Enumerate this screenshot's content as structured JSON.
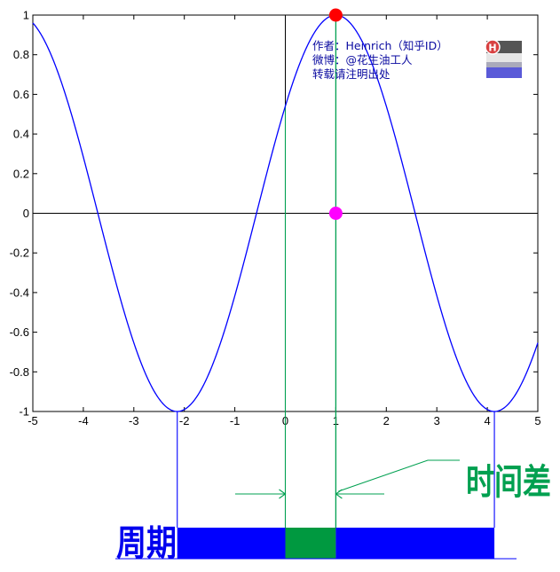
{
  "chart_data": {
    "type": "line",
    "function": "y = cos(x - 1)",
    "title": "",
    "xlabel": "",
    "ylabel": "",
    "xlim": [
      -5,
      5
    ],
    "ylim": [
      -1,
      1
    ],
    "x_ticks": [
      -5,
      -4,
      -3,
      -2,
      -1,
      0,
      1,
      2,
      3,
      4,
      5
    ],
    "x_tick_labels": [
      "-5",
      "-4",
      "-3",
      "-2",
      "-1",
      "0",
      "1",
      "2",
      "3",
      "4",
      "5"
    ],
    "y_ticks": [
      -1,
      -0.8,
      -0.6,
      -0.4,
      -0.2,
      0,
      0.2,
      0.4,
      0.6,
      0.8,
      1
    ],
    "y_tick_labels": [
      "-1",
      "-0.8",
      "-0.6",
      "-0.4",
      "-0.2",
      "0",
      "0.2",
      "0.4",
      "0.6",
      "0.8",
      "1"
    ],
    "series": [
      {
        "name": "cos(x-1)",
        "color": "#0000ff",
        "x_start": -5,
        "x_end": 5,
        "phase": 1,
        "amplitude": 1
      }
    ],
    "points": [
      {
        "name": "peak-point",
        "x": 1,
        "y": 1,
        "color": "#ff0000"
      },
      {
        "name": "axis-point",
        "x": 1,
        "y": 0,
        "color": "#ff00ff"
      }
    ],
    "reference_lines": {
      "green_vertical_x": [
        0,
        1
      ],
      "blue_vertical_x": [
        -2.14,
        4.14
      ]
    },
    "bar": {
      "segments": [
        {
          "name": "period-left",
          "from": -2.14,
          "to": 0,
          "color": "#0000ff"
        },
        {
          "name": "time-difference",
          "from": 0,
          "to": 1,
          "color": "#009940"
        },
        {
          "name": "period-right",
          "from": 1,
          "to": 4.14,
          "color": "#0000ff"
        }
      ]
    },
    "annotations": {
      "period_label": "周期",
      "time_difference_label": "时间差"
    }
  },
  "watermark": {
    "lines": [
      "作者：Heinrich（知乎ID）",
      "微博：@花生油工人",
      "转载请注明出处"
    ],
    "badge_letter": "H"
  },
  "colors": {
    "curve": "#0000ff",
    "green": "#00a050",
    "bar_blue": "#0000ff",
    "bar_green": "#009940",
    "peak_point": "#ff0000",
    "axis_point": "#ff00ff"
  }
}
